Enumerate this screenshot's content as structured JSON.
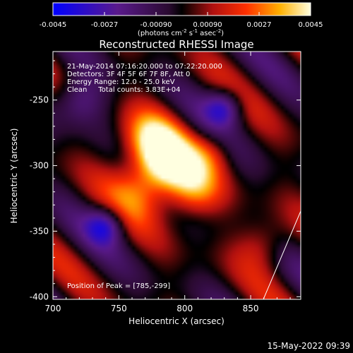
{
  "chart_data": {
    "type": "heatmap",
    "title": "Reconstructed RHESSI Image",
    "xlabel": "Heliocentric X (arcsec)",
    "ylabel": "Heliocentric Y (arcsec)",
    "xlim": [
      700,
      888
    ],
    "ylim": [
      -402,
      -213
    ],
    "xticks": [
      700,
      750,
      800,
      850
    ],
    "yticks": [
      -250,
      -300,
      -350,
      -400
    ],
    "colorbar": {
      "range": [
        -0.0045,
        0.0045
      ],
      "ticks": [
        "-0.0045",
        "-0.0027",
        "-0.00090",
        "0.00090",
        "0.0027",
        "0.0045"
      ],
      "label_main": "(photons cm",
      "label_exp1": "-2",
      "label_mid": " s",
      "label_exp2": "-1",
      "label_tail": " asec",
      "label_exp3": "-2",
      "label_end": ")"
    },
    "annotations": [
      "21-May-2014 07:16:20.000 to 07:22:20.000",
      "Detectors: 3F 4F 5F 6F 7F 8F, Att 0",
      "Energy Range: 12.0 - 25.0 keV",
      "Clean     Total counts: 3.83E+04"
    ],
    "peak_label": "Position of Peak = [785,-299]",
    "peak": [
      785,
      -299
    ],
    "limb_line": [
      [
        857,
        -402
      ],
      [
        888,
        -336
      ]
    ]
  },
  "footer": {
    "timestamp": "15-May-2022 09:39"
  }
}
